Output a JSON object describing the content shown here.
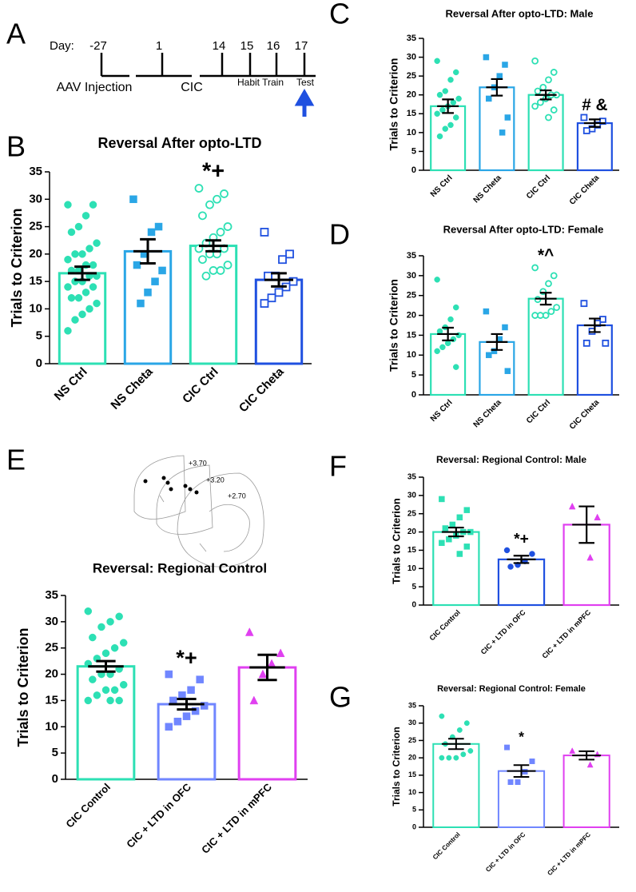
{
  "timeline": {
    "panel": "A",
    "day_label": "Day:",
    "days": [
      "-27",
      "1",
      "14",
      "15",
      "16",
      "17"
    ],
    "labels": [
      "AAV Injection",
      "CIC",
      "Habit Train",
      "Test"
    ]
  },
  "atlas": {
    "panel": "E",
    "labels": [
      "+3.70",
      "+3.20",
      "+2.70"
    ]
  },
  "chart_data": [
    {
      "type": "bar",
      "panel": "B",
      "title": "Reversal After opto-LTD",
      "y_label": "Trials to Criterion",
      "categories": [
        "NS Ctrl",
        "NS Cheta",
        "CIC Ctrl",
        "CIC Cheta"
      ],
      "values": [
        16.5,
        20.5,
        21.5,
        15.3
      ],
      "errors": [
        1.2,
        2.2,
        1,
        1.2
      ],
      "colors": [
        "#2de0b4",
        "#2aa6e6",
        "#2de0b4",
        "#1f50e0"
      ],
      "markers": [
        "circle",
        "square",
        "circle-open",
        "square-open"
      ],
      "points": [
        [
          29,
          29,
          27,
          25,
          24,
          22,
          21,
          20,
          20,
          19,
          18,
          18,
          17,
          17,
          16,
          16,
          15,
          15,
          14,
          14,
          13,
          12,
          12,
          11,
          10,
          9,
          8,
          6
        ],
        [
          30,
          25,
          24,
          20,
          18,
          17,
          15,
          13,
          11
        ],
        [
          32,
          31,
          30,
          29,
          27,
          25,
          24,
          23,
          22,
          21,
          21,
          20,
          20,
          19,
          18,
          17,
          17,
          16
        ],
        [
          24,
          20,
          19,
          16,
          16,
          15,
          14,
          13,
          12,
          11
        ]
      ],
      "annotations": [
        null,
        null,
        "*+",
        null
      ],
      "ylim": [
        0,
        35
      ],
      "yticks": [
        0,
        5,
        10,
        15,
        20,
        25,
        30,
        35
      ]
    },
    {
      "type": "bar",
      "panel": "C",
      "title": "Reversal After opto-LTD: Male",
      "y_label": "Trials to Criterion",
      "categories": [
        "NS Ctrl",
        "NS Cheta",
        "CIC Ctrl",
        "CIC Cheta"
      ],
      "values": [
        17,
        22,
        20,
        12.5
      ],
      "errors": [
        1.8,
        2.2,
        1.2,
        1
      ],
      "colors": [
        "#2de0b4",
        "#2aa6e6",
        "#2de0b4",
        "#1f50e0"
      ],
      "markers": [
        "circle",
        "square",
        "circle-open",
        "square-open"
      ],
      "points": [
        [
          29,
          26,
          24,
          21,
          20,
          19,
          18,
          17,
          16,
          15,
          14,
          12,
          11,
          9
        ],
        [
          30,
          28,
          25,
          22,
          19,
          14,
          10
        ],
        [
          29,
          26,
          24,
          22,
          21,
          20,
          20,
          19,
          18,
          17,
          16,
          14
        ],
        [
          14,
          13,
          12,
          11,
          10.5
        ]
      ],
      "annotations": [
        null,
        null,
        null,
        "# &"
      ],
      "ylim": [
        0,
        35
      ],
      "yticks": [
        0,
        5,
        10,
        15,
        20,
        25,
        30,
        35
      ]
    },
    {
      "type": "bar",
      "panel": "D",
      "title": "Reversal After opto-LTD:  Female",
      "y_label": "Trials to Criterion",
      "categories": [
        "NS Ctrl",
        "NS Cheta",
        "CIC Ctrl",
        "CIC Cheta"
      ],
      "values": [
        15.3,
        13.3,
        24.2,
        17.5
      ],
      "errors": [
        1.6,
        2,
        1.5,
        1.7
      ],
      "colors": [
        "#2de0b4",
        "#2aa6e6",
        "#2de0b4",
        "#1f50e0"
      ],
      "markers": [
        "circle",
        "square",
        "circle-open",
        "square-open"
      ],
      "points": [
        [
          29,
          22,
          19,
          17,
          16,
          15,
          14,
          13,
          12,
          11,
          7
        ],
        [
          21,
          17,
          14,
          11,
          10,
          6
        ],
        [
          32,
          30,
          28,
          26,
          24,
          22,
          21,
          20,
          20,
          20
        ],
        [
          23,
          19,
          18,
          16,
          13,
          13
        ]
      ],
      "annotations": [
        null,
        null,
        "*^",
        null
      ],
      "ylim": [
        0,
        35
      ],
      "yticks": [
        0,
        5,
        10,
        15,
        20,
        25,
        30,
        35
      ]
    },
    {
      "type": "bar",
      "title": "Reversal: Regional Control",
      "y_label": "Trials to Criterion",
      "categories": [
        "CIC Control",
        "CIC + LTD in OFC",
        "CIC + LTD in mPFC"
      ],
      "values": [
        21.5,
        14.3,
        21.3
      ],
      "errors": [
        1,
        1,
        2.4
      ],
      "colors": [
        "#2de0b4",
        "#7086ff",
        "#e040f0"
      ],
      "markers": [
        "circle",
        "square",
        "triangle"
      ],
      "points": [
        [
          32,
          31,
          30,
          29,
          27,
          26,
          25,
          24,
          23,
          22,
          21,
          20,
          20,
          19,
          18,
          17,
          17,
          16,
          15,
          15,
          15
        ],
        [
          20,
          19,
          17,
          16,
          15,
          14,
          13,
          12,
          11,
          10
        ],
        [
          28,
          24,
          22,
          20,
          15
        ]
      ],
      "annotations": [
        null,
        "*+",
        null
      ],
      "ylim": [
        0,
        35
      ],
      "yticks": [
        0,
        5,
        10,
        15,
        20,
        25,
        30,
        35
      ]
    },
    {
      "type": "bar",
      "panel": "F",
      "title": "Reversal: Regional Control: Male",
      "y_label": "Trials to Criterion",
      "categories": [
        "CIC Control",
        "CIC + LTD in OFC",
        "CIC + LTD in mPFC"
      ],
      "values": [
        20,
        12.5,
        22
      ],
      "errors": [
        1.2,
        1,
        5
      ],
      "colors": [
        "#2de0b4",
        "#1f50e0",
        "#e040f0"
      ],
      "markers": [
        "square",
        "circle",
        "triangle"
      ],
      "points": [
        [
          29,
          26,
          24,
          22,
          21,
          20,
          20,
          19,
          18,
          17,
          16,
          14
        ],
        [
          15,
          14,
          12,
          11,
          10.5
        ],
        [
          27,
          24,
          13
        ]
      ],
      "annotations": [
        null,
        "*+",
        null
      ],
      "ylim": [
        0,
        35
      ],
      "yticks": [
        0,
        5,
        10,
        15,
        20,
        25,
        30,
        35
      ]
    },
    {
      "type": "bar",
      "panel": "G",
      "title": "Reversal: Regional Control: Female",
      "y_label": "Trials to Criterion",
      "categories": [
        "CIC Control",
        "CIC + LTD in OFC",
        "CIC + LTD in mPFC"
      ],
      "values": [
        24,
        16.2,
        20.7
      ],
      "errors": [
        1.5,
        1.7,
        1.2
      ],
      "colors": [
        "#2de0b4",
        "#7086ff",
        "#e040f0"
      ],
      "markers": [
        "circle",
        "square",
        "triangle"
      ],
      "points": [
        [
          32,
          30,
          28,
          26,
          24,
          22,
          21,
          20,
          20,
          20
        ],
        [
          23,
          19,
          16,
          13,
          13
        ],
        [
          22,
          21,
          18
        ]
      ],
      "annotations": [
        null,
        "*",
        null
      ],
      "ylim": [
        0,
        35
      ],
      "yticks": [
        0,
        5,
        10,
        15,
        20,
        25,
        30,
        35
      ]
    }
  ]
}
